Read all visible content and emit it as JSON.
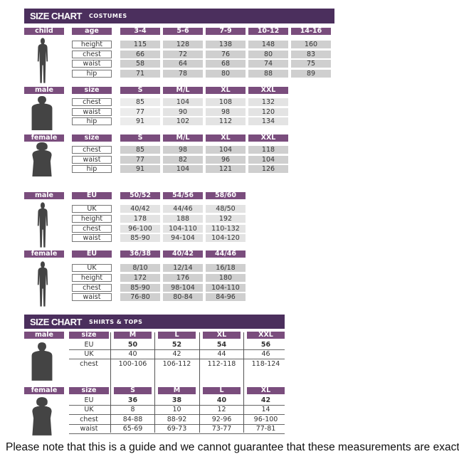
{
  "costumes": {
    "title": "SIZE CHART",
    "subtitle": "COSTUMES",
    "blocks": [
      {
        "label": "child",
        "header_label": "age",
        "columns": [
          "3-4",
          "5-6",
          "7-9",
          "10-12",
          "14-16"
        ],
        "rows": [
          {
            "label": "height",
            "values": [
              "115",
              "128",
              "138",
              "148",
              "160"
            ]
          },
          {
            "label": "chest",
            "values": [
              "66",
              "72",
              "76",
              "80",
              "83"
            ]
          },
          {
            "label": "waist",
            "values": [
              "58",
              "64",
              "68",
              "74",
              "75"
            ]
          },
          {
            "label": "hip",
            "values": [
              "71",
              "78",
              "80",
              "88",
              "89"
            ]
          }
        ]
      },
      {
        "label": "male",
        "header_label": "size",
        "columns": [
          "S",
          "M/L",
          "XL",
          "XXL"
        ],
        "rows": [
          {
            "label": "chest",
            "values": [
              "85",
              "104",
              "108",
              "132"
            ]
          },
          {
            "label": "waist",
            "values": [
              "77",
              "90",
              "98",
              "120"
            ]
          },
          {
            "label": "hip",
            "values": [
              "91",
              "102",
              "112",
              "134"
            ]
          }
        ]
      },
      {
        "label": "female",
        "header_label": "size",
        "columns": [
          "S",
          "M/L",
          "XL",
          "XXL"
        ],
        "rows": [
          {
            "label": "chest",
            "values": [
              "85",
              "98",
              "104",
              "118"
            ]
          },
          {
            "label": "waist",
            "values": [
              "77",
              "82",
              "96",
              "104"
            ]
          },
          {
            "label": "hip",
            "values": [
              "91",
              "104",
              "121",
              "126"
            ]
          }
        ]
      },
      {
        "label": "male",
        "header_label": "EU",
        "columns": [
          "50/52",
          "54/56",
          "58/60"
        ],
        "rows": [
          {
            "label": "UK",
            "values": [
              "40/42",
              "44/46",
              "48/50"
            ]
          },
          {
            "label": "height",
            "values": [
              "178",
              "188",
              "192"
            ]
          },
          {
            "label": "chest",
            "values": [
              "96-100",
              "104-110",
              "110-132"
            ]
          },
          {
            "label": "waist",
            "values": [
              "85-90",
              "94-104",
              "104-120"
            ]
          }
        ]
      },
      {
        "label": "female",
        "header_label": "EU",
        "columns": [
          "36/38",
          "40/42",
          "44/46"
        ],
        "rows": [
          {
            "label": "UK",
            "values": [
              "8/10",
              "12/14",
              "16/18"
            ]
          },
          {
            "label": "height",
            "values": [
              "172",
              "176",
              "180"
            ]
          },
          {
            "label": "chest",
            "values": [
              "85-90",
              "98-104",
              "104-110"
            ]
          },
          {
            "label": "waist",
            "values": [
              "76-80",
              "80-84",
              "84-96"
            ]
          }
        ]
      }
    ]
  },
  "shirts": {
    "title": "SIZE CHART",
    "subtitle": "SHIRTS & TOPS",
    "blocks": [
      {
        "label": "male",
        "header_label": "size",
        "columns": [
          "M",
          "L",
          "XL",
          "XXL"
        ],
        "rows": [
          {
            "label": "EU",
            "values": [
              "50",
              "52",
              "54",
              "56"
            ],
            "bold": true
          },
          {
            "label": "UK",
            "values": [
              "40",
              "42",
              "44",
              "46"
            ]
          },
          {
            "label": "chest",
            "values": [
              "100-106",
              "106-112",
              "112-118",
              "118-124"
            ]
          }
        ]
      },
      {
        "label": "female",
        "header_label": "size",
        "columns": [
          "S",
          "M",
          "L",
          "XL"
        ],
        "rows": [
          {
            "label": "EU",
            "values": [
              "36",
              "38",
              "40",
              "42"
            ],
            "bold": true
          },
          {
            "label": "UK",
            "values": [
              "8",
              "10",
              "12",
              "14"
            ]
          },
          {
            "label": "chest",
            "values": [
              "84-88",
              "88-92",
              "92-96",
              "96-100"
            ]
          },
          {
            "label": "waist",
            "values": [
              "65-69",
              "69-73",
              "73-77",
              "77-81"
            ]
          }
        ]
      }
    ]
  },
  "footer_note": "Please note that this is a guide and we cannot guarantee that these measurements are exact",
  "colors": {
    "banner": "#4b2f5d",
    "label": "#7a4d7d",
    "cell": "#cfcfcf",
    "figure": "#444444"
  }
}
